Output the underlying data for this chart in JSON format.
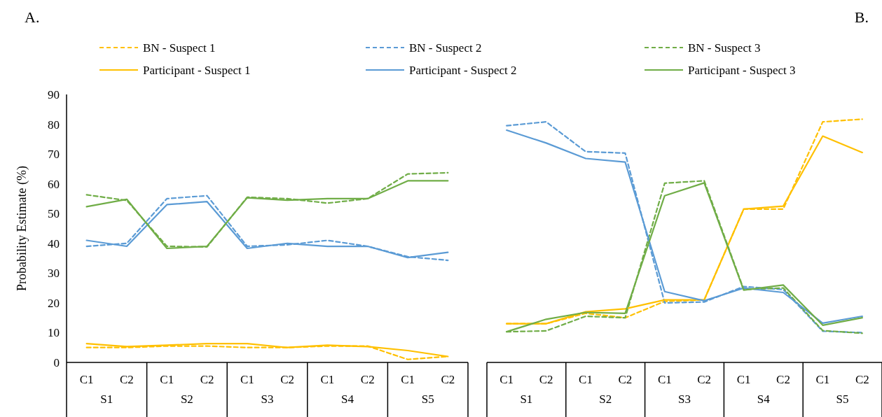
{
  "chart_data": [
    {
      "type": "line",
      "title": "A.",
      "ylabel": "Probability Estimate (%)",
      "categories": [
        "C1",
        "C2",
        "C1",
        "C2",
        "C1",
        "C2",
        "C1",
        "C2",
        "C1",
        "C2"
      ],
      "annotations": [
        "S1",
        "S2",
        "S3",
        "S4",
        "S5"
      ],
      "ylim": [
        0,
        90
      ],
      "yticks": [
        0,
        10,
        20,
        30,
        40,
        50,
        60,
        70,
        80,
        90
      ],
      "legend": "top",
      "series": [
        {
          "name": "BN - Suspect 1",
          "color": "#ffc000",
          "line_style": "dashed",
          "values": [
            5,
            5,
            5.5,
            5.5,
            5,
            5,
            5.5,
            5.5,
            1,
            2
          ]
        },
        {
          "name": "BN - Suspect 2",
          "color": "#5b9bd5",
          "line_style": "dashed",
          "values": [
            39,
            40,
            55,
            56,
            39,
            39.5,
            41,
            39,
            35.5,
            34.3
          ]
        },
        {
          "name": "BN - Suspect 3",
          "color": "#70ad47",
          "line_style": "dashed",
          "values": [
            56.3,
            54.4,
            39,
            38.8,
            55.5,
            55,
            53.5,
            55,
            63.3,
            63.7
          ]
        },
        {
          "name": "Participant - Suspect 1",
          "color": "#ffc000",
          "line_style": "solid",
          "values": [
            6.3,
            5.3,
            5.8,
            6.3,
            6.3,
            5,
            5.8,
            5.3,
            4,
            2
          ]
        },
        {
          "name": "Participant - Suspect 2",
          "color": "#5b9bd5",
          "line_style": "solid",
          "values": [
            41,
            39,
            53,
            54,
            38.3,
            40,
            39,
            39,
            35.2,
            37
          ]
        },
        {
          "name": "Participant - Suspect 3",
          "color": "#70ad47",
          "line_style": "solid",
          "values": [
            52.3,
            54.8,
            38.3,
            39,
            55.3,
            54.5,
            55,
            55,
            61,
            61
          ]
        }
      ]
    },
    {
      "type": "line",
      "title": "B.",
      "categories": [
        "C1",
        "C2",
        "C1",
        "C2",
        "C1",
        "C2",
        "C1",
        "C2",
        "C1",
        "C2"
      ],
      "annotations": [
        "S1",
        "S2",
        "S3",
        "S4",
        "S5"
      ],
      "ylim": [
        0,
        90
      ],
      "yticks": [
        0,
        10,
        20,
        30,
        40,
        50,
        60,
        70,
        80,
        90
      ],
      "tick_labels": "x",
      "series": [
        {
          "color": "#ffc000",
          "line_style": "dashed",
          "values": [
            13,
            13,
            16.5,
            15,
            20.5,
            21,
            51.5,
            51.5,
            80.8,
            81.7
          ]
        },
        {
          "color": "#5b9bd5",
          "line_style": "dashed",
          "values": [
            79.5,
            80.8,
            70.8,
            70.3,
            20,
            20.3,
            25.5,
            24.5,
            10.5,
            10
          ]
        },
        {
          "color": "#70ad47",
          "line_style": "dashed",
          "values": [
            10.3,
            10.6,
            15.5,
            15,
            60.2,
            61,
            24.5,
            25,
            10.7,
            9.8
          ]
        },
        {
          "color": "#ffc000",
          "line_style": "solid",
          "values": [
            13,
            13,
            17,
            18,
            21,
            21,
            51.5,
            52.5,
            76,
            70.5
          ]
        },
        {
          "color": "#5b9bd5",
          "line_style": "solid",
          "values": [
            78,
            73.7,
            68.5,
            67.3,
            23.8,
            20.7,
            25,
            23.5,
            13.2,
            15.5
          ]
        },
        {
          "color": "#70ad47",
          "line_style": "solid",
          "values": [
            10.3,
            14.5,
            16.8,
            16.5,
            56,
            60.3,
            24.3,
            26,
            12.5,
            15
          ]
        }
      ]
    }
  ]
}
